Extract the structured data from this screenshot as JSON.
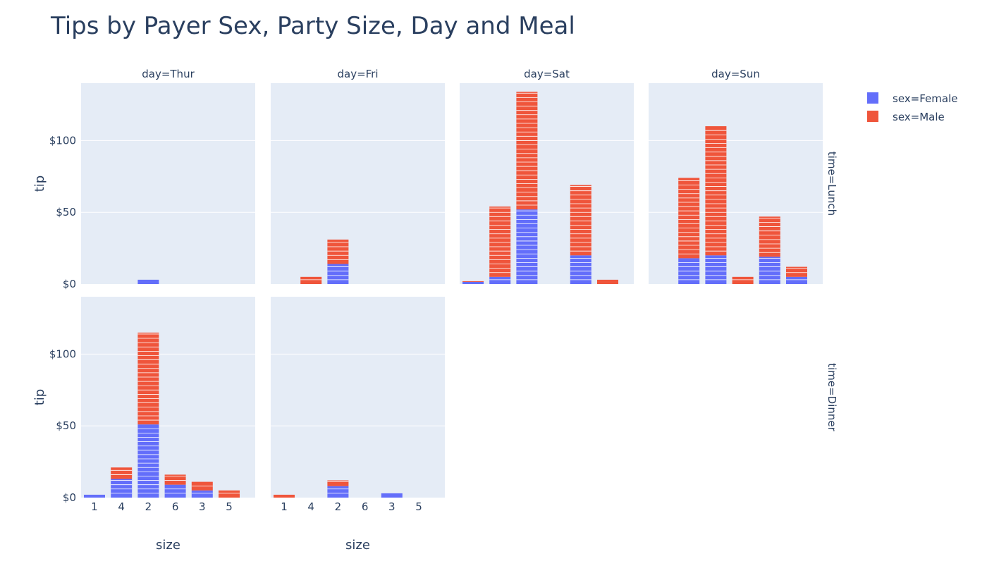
{
  "chart_data": {
    "type": "bar",
    "barmode": "stack",
    "title": "Tips by Payer Sex, Party Size, Day and Meal",
    "xlabel": "size",
    "ylabel": "tip",
    "x_categories": [
      "1",
      "4",
      "2",
      "6",
      "3",
      "5"
    ],
    "ylim": [
      0,
      140
    ],
    "y_ticks": [
      0,
      50,
      100
    ],
    "y_tick_labels": [
      "$0",
      "$50",
      "$100"
    ],
    "column_titles": [
      "day=Thur",
      "day=Fri",
      "day=Sat",
      "day=Sun"
    ],
    "row_titles": [
      "time=Lunch",
      "time=Dinner"
    ],
    "legend": [
      {
        "name": "sex=Female",
        "color": "#636efa"
      },
      {
        "name": "sex=Male",
        "color": "#ef553b"
      }
    ],
    "legend_position": "top-right",
    "panels": [
      {
        "day": "Thur",
        "time": "Lunch",
        "female": {
          "1": 0,
          "4": 0,
          "2": 3,
          "6": 0,
          "3": 0,
          "5": 0
        },
        "male": {
          "1": 0,
          "4": 0,
          "2": 0,
          "6": 0,
          "3": 0,
          "5": 0
        }
      },
      {
        "day": "Fri",
        "time": "Lunch",
        "female": {
          "1": 0,
          "4": 0,
          "2": 14,
          "6": 0,
          "3": 0,
          "5": 0
        },
        "male": {
          "1": 0,
          "4": 5,
          "2": 17,
          "6": 0,
          "3": 0,
          "5": 0
        }
      },
      {
        "day": "Sat",
        "time": "Lunch",
        "female": {
          "1": 1.5,
          "4": 5,
          "2": 52,
          "6": 0,
          "3": 20,
          "5": 0
        },
        "male": {
          "1": 0.5,
          "4": 49,
          "2": 82,
          "6": 0,
          "3": 49,
          "5": 3
        }
      },
      {
        "day": "Sun",
        "time": "Lunch",
        "female": {
          "1": 0,
          "4": 18,
          "2": 20,
          "6": 0,
          "3": 19,
          "5": 5
        },
        "male": {
          "1": 0,
          "4": 56,
          "2": 90,
          "6": 5,
          "3": 28,
          "5": 7
        }
      },
      {
        "day": "Thur",
        "time": "Dinner",
        "female": {
          "1": 2,
          "4": 13,
          "2": 51,
          "6": 9,
          "3": 5,
          "5": 0
        },
        "male": {
          "1": 0,
          "4": 8,
          "2": 64,
          "6": 7,
          "3": 6,
          "5": 5
        }
      },
      {
        "day": "Fri",
        "time": "Dinner",
        "female": {
          "1": 0,
          "4": 0,
          "2": 8,
          "6": 0,
          "3": 3,
          "5": 0
        },
        "male": {
          "1": 2,
          "4": 0,
          "2": 4,
          "6": 0,
          "3": 0,
          "5": 0
        }
      }
    ]
  }
}
